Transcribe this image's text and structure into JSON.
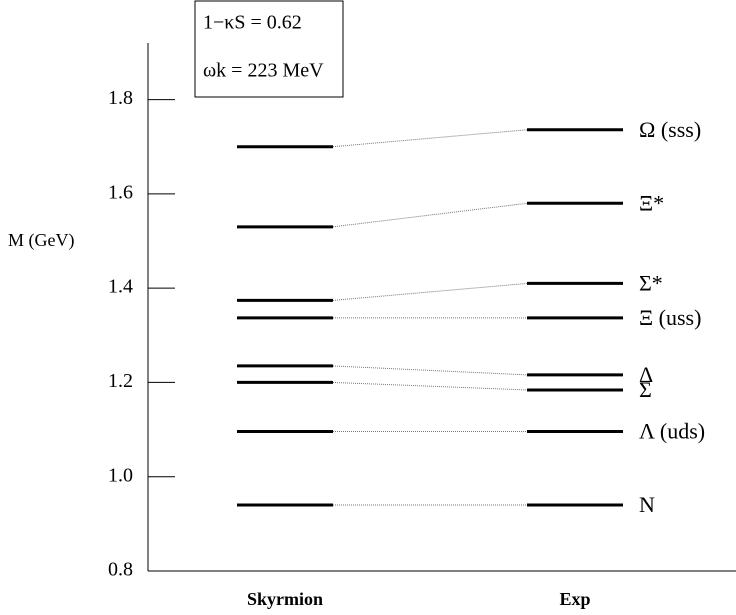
{
  "chart_data": {
    "type": "level",
    "ylabel": "M (GeV)",
    "annotations": [
      "1−κS = 0.62",
      "ωk = 223 MeV"
    ],
    "ylim": [
      0.8,
      1.92
    ],
    "yticks": [
      {
        "value": 0.8,
        "label": "0.8"
      },
      {
        "value": 1.0,
        "label": "1.0"
      },
      {
        "value": 1.2,
        "label": "1.2"
      },
      {
        "value": 1.4,
        "label": "1.4"
      },
      {
        "value": 1.6,
        "label": "1.6"
      },
      {
        "value": 1.8,
        "label": "1.8"
      }
    ],
    "series": [
      {
        "name": "Skyrmion",
        "color": "#000000",
        "values": [
          1.7,
          1.53,
          1.374,
          1.337,
          1.235,
          1.2,
          1.096,
          0.94
        ]
      },
      {
        "name": "Exp",
        "color": "#000000",
        "values": [
          1.736,
          1.58,
          1.41,
          1.337,
          1.216,
          1.184,
          1.096,
          0.94
        ],
        "labels": [
          "Ω (sss)",
          "Ξ*",
          "Σ*",
          "Ξ  (uss)",
          "Δ",
          "Σ",
          "Λ (uds)",
          "N"
        ]
      }
    ]
  }
}
